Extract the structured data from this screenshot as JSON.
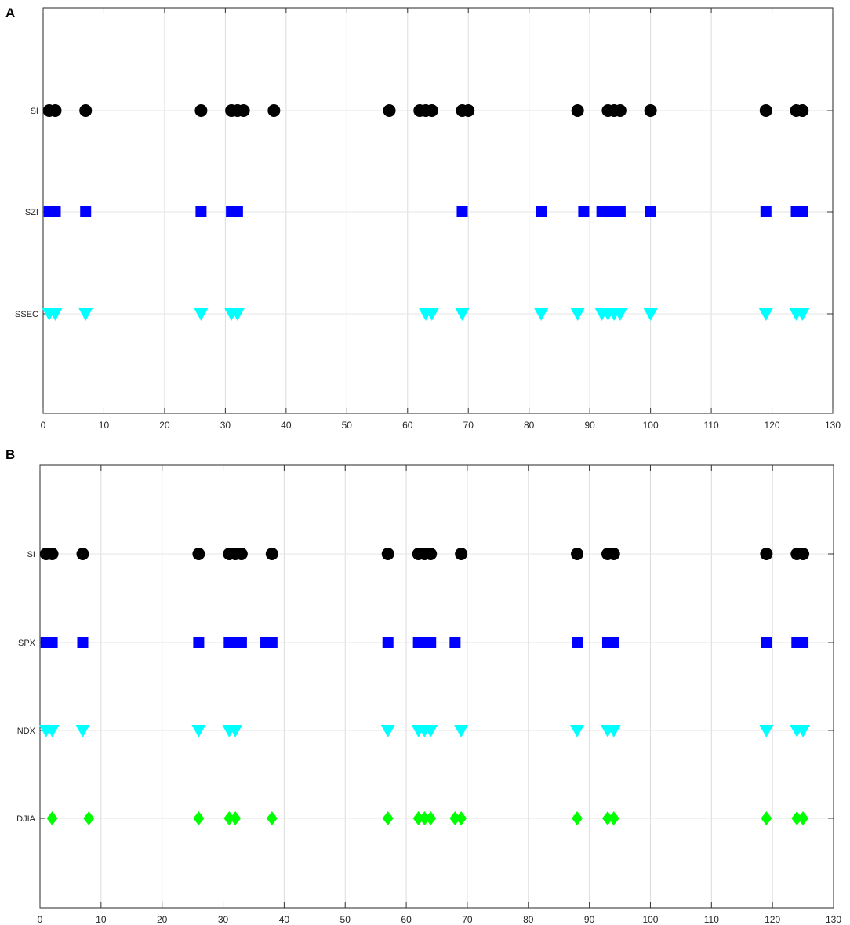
{
  "chart_data": [
    {
      "panel": "A",
      "type": "scatter",
      "xlim": [
        0,
        130
      ],
      "xticks": [
        0,
        10,
        20,
        30,
        40,
        50,
        60,
        70,
        80,
        90,
        100,
        110,
        120,
        130
      ],
      "grid": "vertical",
      "series": [
        {
          "name": "SI",
          "marker": "circle",
          "color": "#000000",
          "x": [
            1,
            2,
            7,
            26,
            31,
            32,
            33,
            38,
            57,
            62,
            63,
            64,
            69,
            70,
            88,
            93,
            94,
            95,
            100,
            119,
            124,
            125
          ]
        },
        {
          "name": "SZI",
          "marker": "square",
          "color": "#0000ff",
          "x": [
            1,
            2,
            7,
            26,
            31,
            32,
            69,
            82,
            89,
            92,
            93,
            94,
            95,
            100,
            119,
            124,
            125
          ]
        },
        {
          "name": "SSEC",
          "marker": "triangle-down",
          "color": "#00ffff",
          "x": [
            1,
            2,
            7,
            26,
            31,
            32,
            63,
            64,
            69,
            82,
            88,
            92,
            93,
            94,
            95,
            100,
            119,
            124,
            125
          ]
        }
      ]
    },
    {
      "panel": "B",
      "type": "scatter",
      "xlim": [
        0,
        130
      ],
      "xticks": [
        0,
        10,
        20,
        30,
        40,
        50,
        60,
        70,
        80,
        90,
        100,
        110,
        120,
        130
      ],
      "grid": "vertical",
      "series": [
        {
          "name": "SI",
          "marker": "circle",
          "color": "#000000",
          "x": [
            1,
            2,
            7,
            26,
            31,
            32,
            33,
            38,
            57,
            62,
            63,
            64,
            69,
            88,
            93,
            94,
            119,
            124,
            125
          ]
        },
        {
          "name": "SPX",
          "marker": "square",
          "color": "#0000ff",
          "x": [
            1,
            2,
            7,
            26,
            31,
            32,
            33,
            37,
            38,
            57,
            62,
            63,
            64,
            68,
            88,
            93,
            94,
            119,
            124,
            125
          ]
        },
        {
          "name": "NDX",
          "marker": "triangle-down",
          "color": "#00ffff",
          "x": [
            1,
            2,
            7,
            26,
            31,
            32,
            57,
            62,
            63,
            64,
            69,
            88,
            93,
            94,
            119,
            124,
            125
          ]
        },
        {
          "name": "DJIA",
          "marker": "diamond",
          "color": "#00ff00",
          "x": [
            2,
            8,
            26,
            31,
            32,
            38,
            57,
            62,
            63,
            64,
            68,
            69,
            88,
            93,
            94,
            119,
            124,
            125
          ]
        }
      ]
    }
  ]
}
